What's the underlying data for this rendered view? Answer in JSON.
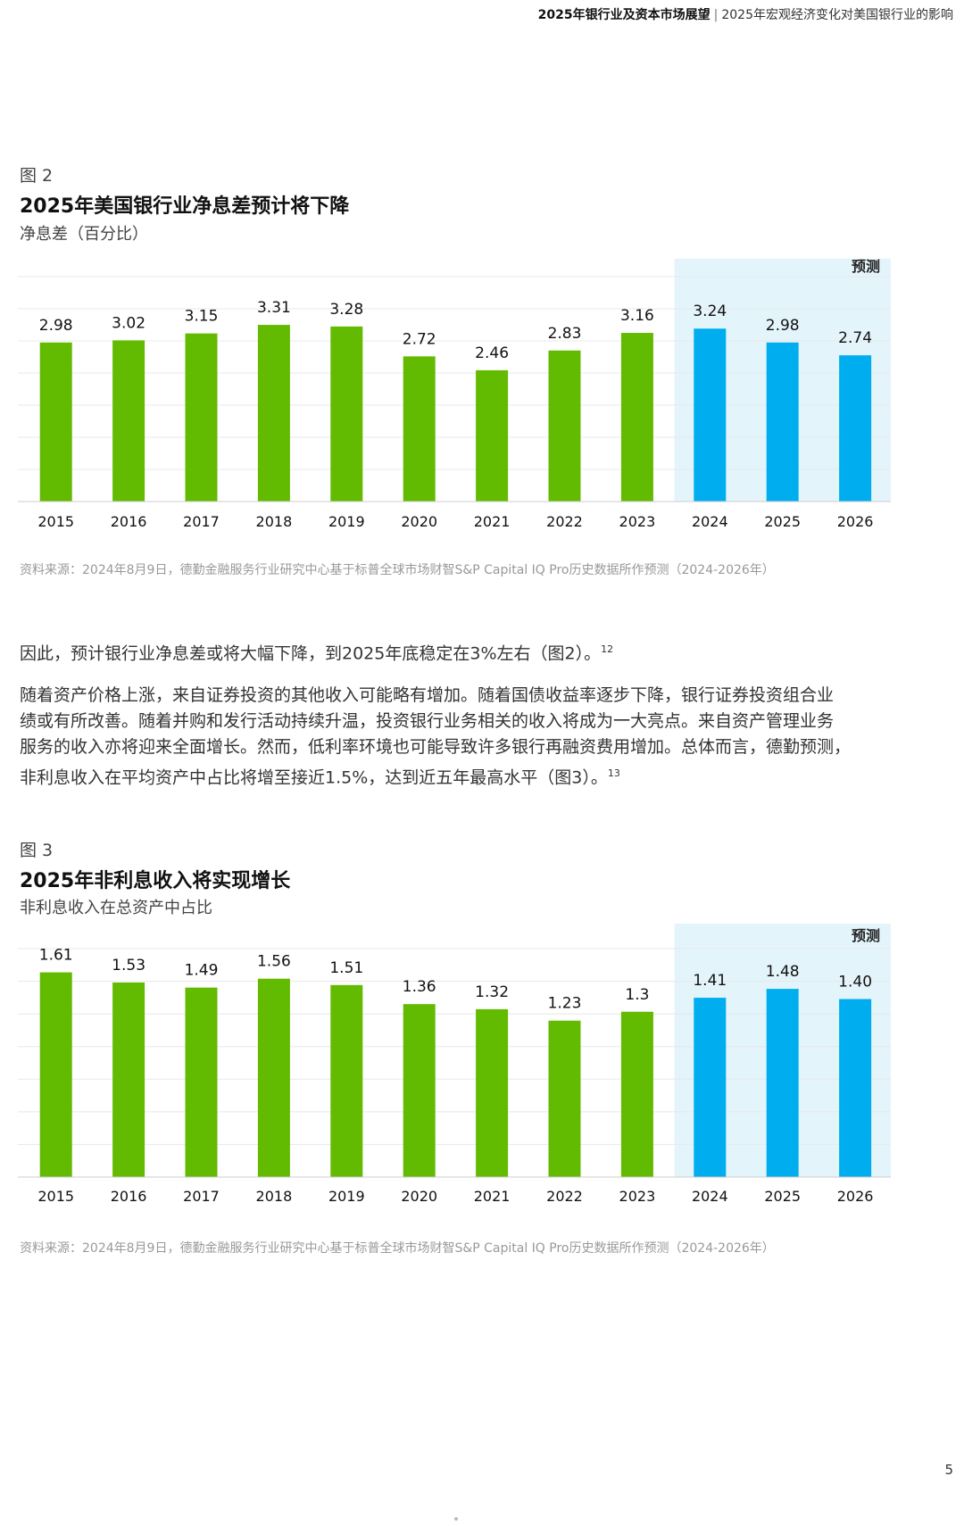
{
  "header": {
    "report_title": "2025年银行业及资本市场展望",
    "separator": "|",
    "section_title": "2025年宏观经济变化对美国银行业的影响"
  },
  "figure2": {
    "label": "图 2",
    "title": "2025年美国银行业净息差预计将下降",
    "subtitle": "净息差（百分比）",
    "source": "资料来源：2024年8月9日，德勤金融服务行业研究中心基于标普全球市场财智S&P Capital IQ Pro历史数据所作预测（2024-2026年）"
  },
  "paragraph1": {
    "text": "因此，预计银行业净息差或将大幅下降，到2025年底稳定在3%左右（图2）。",
    "footnote": "12"
  },
  "paragraph2": {
    "lines": [
      "随着资产价格上涨，来自证券投资的其他收入可能略有增加。随着国债收益率逐步下降，银行证券投资组合业",
      "绩或有所改善。随着并购和发行活动持续升温，投资银行业务相关的收入将成为一大亮点。来自资产管理业务",
      "服务的收入亦将迎来全面增长。然而，低利率环境也可能导致许多银行再融资费用增加。总体而言，德勤预测，",
      "非利息收入在平均资产中占比将增至接近1.5%，达到近五年最高水平（图3）。"
    ],
    "footnote": "13"
  },
  "figure3": {
    "label": "图 3",
    "title": "2025年非利息收入将实现增长",
    "subtitle": "非利息收入在总资产中占比",
    "source": "资料来源：2024年8月9日，德勤金融服务行业研究中心基于标普全球市场财智S&P Capital IQ Pro历史数据所作预测（2024-2026年）"
  },
  "page_number": "5",
  "colors": {
    "actual": "#62BB00",
    "forecast": "#00AEEF",
    "forecast_bg": "#E3F4FB",
    "grid": "#E8E8E8"
  },
  "chart_data": [
    {
      "type": "bar",
      "categories": [
        "2015",
        "2016",
        "2017",
        "2018",
        "2019",
        "2020",
        "2021",
        "2022",
        "2023",
        "2024",
        "2025",
        "2026"
      ],
      "values": [
        2.98,
        3.02,
        3.15,
        3.31,
        3.28,
        2.72,
        2.46,
        2.83,
        3.16,
        3.24,
        2.98,
        2.74
      ],
      "value_labels": [
        "2.98",
        "3.02",
        "3.15",
        "3.31",
        "3.28",
        "2.72",
        "2.46",
        "2.83",
        "3.16",
        "3.24",
        "2.98",
        "2.74"
      ],
      "forecast_start_index": 9,
      "forecast_label": "预测",
      "ylim": [
        0,
        3.5
      ],
      "grid": true
    },
    {
      "type": "bar",
      "categories": [
        "2015",
        "2016",
        "2017",
        "2018",
        "2019",
        "2020",
        "2021",
        "2022",
        "2023",
        "2024",
        "2025",
        "2026"
      ],
      "values": [
        1.61,
        1.53,
        1.49,
        1.56,
        1.51,
        1.36,
        1.32,
        1.23,
        1.3,
        1.41,
        1.48,
        1.4
      ],
      "value_labels": [
        "1.61",
        "1.53",
        "1.49",
        "1.56",
        "1.51",
        "1.36",
        "1.32",
        "1.23",
        "1.3",
        "1.41",
        "1.48",
        "1.40"
      ],
      "forecast_start_index": 9,
      "forecast_label": "预测",
      "ylim": [
        0,
        1.8
      ],
      "grid": true
    }
  ]
}
